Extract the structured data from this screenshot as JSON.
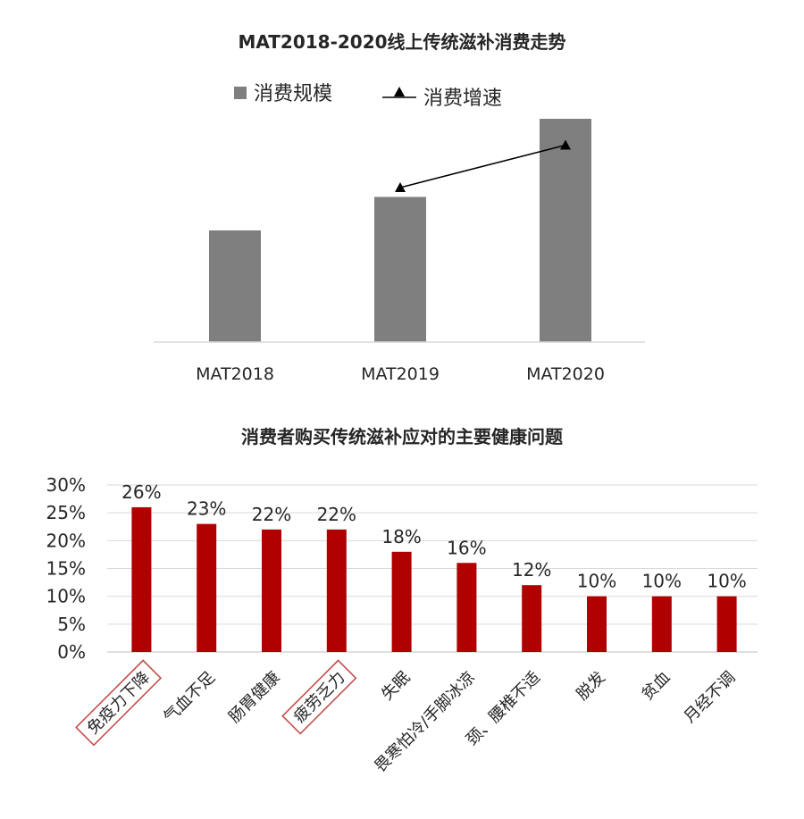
{
  "chart_data": [
    {
      "type": "bar",
      "title": "MAT2018-2020线上传统滋补消费走势",
      "categories": [
        "MAT2018",
        "MAT2019",
        "MAT2020"
      ],
      "series": [
        {
          "name": "消费规模",
          "type": "bar",
          "values": [
            50,
            65,
            100
          ],
          "color": "#7f7f7f"
        },
        {
          "name": "消费增速",
          "type": "line",
          "marker": "triangle",
          "values": [
            null,
            70,
            89
          ],
          "color": "#000000"
        }
      ],
      "ylim": [
        0,
        100
      ],
      "legend_position": "top-center",
      "grid": false
    },
    {
      "type": "bar",
      "title": "消费者购买传统滋补应对的主要健康问题",
      "categories": [
        "免疫力下降",
        "气血不足",
        "肠胃健康",
        "疲劳乏力",
        "失眠",
        "畏寒怕冷/手脚冰凉",
        "颈、腰椎不适",
        "脱发",
        "贫血",
        "月经不调"
      ],
      "values": [
        26,
        23,
        22,
        22,
        18,
        16,
        12,
        10,
        10,
        10
      ],
      "data_labels": [
        "26%",
        "23%",
        "22%",
        "22%",
        "18%",
        "16%",
        "12%",
        "10%",
        "10%",
        "10%"
      ],
      "ylim": [
        0,
        30
      ],
      "yticks": [
        "0%",
        "5%",
        "10%",
        "15%",
        "20%",
        "25%",
        "30%"
      ],
      "highlighted": [
        "免疫力下降",
        "疲劳乏力"
      ],
      "color": "#b00000",
      "highlight_color": "#c0504d",
      "grid": true
    }
  ]
}
